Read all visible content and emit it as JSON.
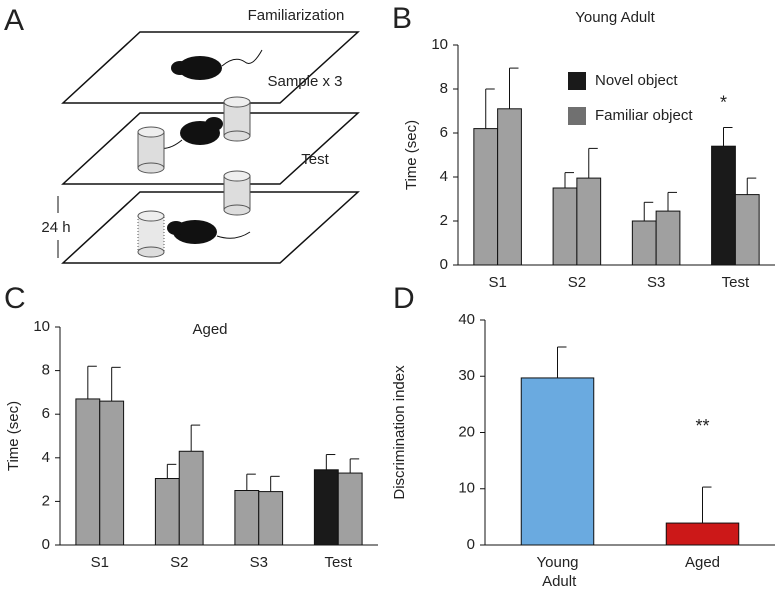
{
  "panel_a": {
    "panel": "A",
    "labels": [
      "Familiarization",
      "Sample x 3",
      "Test",
      "24 h"
    ]
  },
  "chart_data": [
    {
      "type": "bar",
      "panel": "B",
      "title": "Young  Adult",
      "ylabel": "Time (sec)",
      "categories": [
        "S1",
        "S2",
        "S3",
        "Test"
      ],
      "series": [
        {
          "name": "Novel object",
          "color": "#1a1a1a",
          "bar_colors": [
            "#a0a0a0",
            "#a0a0a0",
            "#a0a0a0",
            "#1a1a1a"
          ],
          "values": [
            6.2,
            3.5,
            2.0,
            5.4
          ],
          "errors": [
            1.8,
            0.7,
            0.85,
            0.85
          ]
        },
        {
          "name": "Familiar object",
          "color": "#707070",
          "bar_colors": [
            "#a0a0a0",
            "#a0a0a0",
            "#a0a0a0",
            "#a0a0a0"
          ],
          "values": [
            7.1,
            3.95,
            2.45,
            3.2
          ],
          "errors": [
            1.85,
            1.35,
            0.85,
            0.75
          ]
        }
      ],
      "annotation": "*",
      "ylim": [
        0,
        10
      ],
      "yticks": [
        0,
        2,
        4,
        6,
        8,
        10
      ],
      "legend": "upper right"
    },
    {
      "type": "bar",
      "panel": "C",
      "title": "Aged",
      "ylabel": "Time (sec)",
      "categories": [
        "S1",
        "S2",
        "S3",
        "Test"
      ],
      "series": [
        {
          "bar_colors": [
            "#a0a0a0",
            "#a0a0a0",
            "#a0a0a0",
            "#1a1a1a"
          ],
          "values": [
            6.7,
            3.05,
            2.5,
            3.45
          ],
          "errors": [
            1.5,
            0.65,
            0.75,
            0.7
          ]
        },
        {
          "bar_colors": [
            "#a0a0a0",
            "#a0a0a0",
            "#a0a0a0",
            "#a0a0a0"
          ],
          "values": [
            6.6,
            4.3,
            2.45,
            3.3
          ],
          "errors": [
            1.55,
            1.2,
            0.7,
            0.65
          ]
        }
      ],
      "ylim": [
        0,
        10
      ],
      "yticks": [
        0,
        2,
        4,
        6,
        8,
        10
      ]
    },
    {
      "type": "bar",
      "panel": "D",
      "ylabel": "Discrimination index",
      "categories": [
        "Young Adult",
        "Aged"
      ],
      "series": [
        {
          "bar_colors": [
            "#6aaae0",
            "#cc1818"
          ],
          "values": [
            29.7,
            3.9
          ],
          "errors": [
            5.5,
            6.4
          ]
        }
      ],
      "annotation": "**",
      "ylim": [
        0,
        40
      ],
      "yticks": [
        0,
        10,
        20,
        30,
        40
      ]
    }
  ]
}
